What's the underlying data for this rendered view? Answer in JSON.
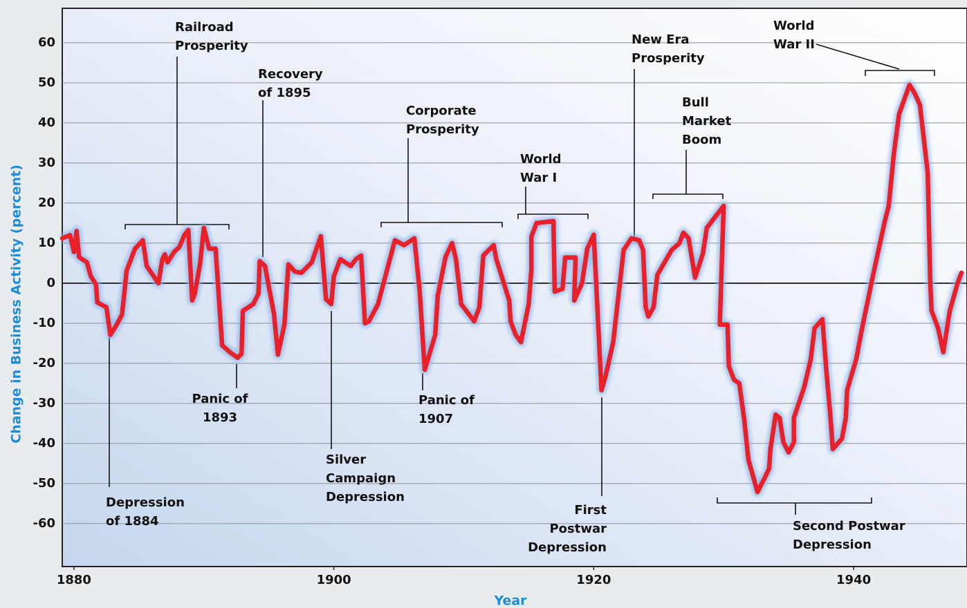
{
  "chart_data": {
    "type": "line",
    "xlabel": "Year",
    "ylabel": "Change in Business Activity  (percent)",
    "xlim": [
      1879.1,
      1948.3
    ],
    "ylim": [
      -70.7,
      68.6
    ],
    "xticks": [
      1880,
      1900,
      1920,
      1940
    ],
    "yticks": [
      -60,
      -50,
      -40,
      -30,
      -20,
      -10,
      0,
      10,
      20,
      30,
      40,
      50,
      60
    ],
    "grid": true,
    "series": [
      {
        "color": "#e8202a",
        "x": [
          1879.1,
          1879.7,
          1880,
          1880.2,
          1880.4,
          1881,
          1881.3,
          1881.7,
          1881.8,
          1882.5,
          1882.8,
          1883.3,
          1883.7,
          1883.9,
          1884.05,
          1884.7,
          1885.3,
          1885.6,
          1886.5,
          1886.8,
          1887,
          1887.2,
          1887.7,
          1888.1,
          1888.5,
          1888.8,
          1889.1,
          1889.3,
          1889.7,
          1890,
          1890.4,
          1890.9,
          1891.4,
          1892,
          1892.6,
          1892.9,
          1893,
          1893.8,
          1894.2,
          1894.3,
          1894.7,
          1895.4,
          1895.7,
          1896.2,
          1896.5,
          1897,
          1897.5,
          1898.3,
          1899,
          1899.4,
          1899.8,
          1900,
          1900.5,
          1901.3,
          1901.7,
          1902.1,
          1902.4,
          1902.7,
          1903.4,
          1904.7,
          1905.4,
          1906.2,
          1906.6,
          1907,
          1907.8,
          1908,
          1908.6,
          1909.1,
          1909.4,
          1909.8,
          1910.8,
          1911.2,
          1911.5,
          1912.3,
          1912.5,
          1913.5,
          1913.6,
          1914,
          1914.4,
          1915,
          1915.2,
          1915.2,
          1915.6,
          1916.9,
          1917,
          1917.6,
          1917.8,
          1918.6,
          1918.5,
          1919.1,
          1919.5,
          1920,
          1920.6,
          1920.9,
          1921.5,
          1922.3,
          1922.9,
          1923.5,
          1923.8,
          1924,
          1924.2,
          1924.6,
          1924.9,
          1926,
          1926.6,
          1926.9,
          1927.3,
          1927.8,
          1928.4,
          1928.7,
          1930,
          1929.7,
          1930.3,
          1930.4,
          1930.8,
          1931.2,
          1931.6,
          1931.9,
          1932.2,
          1932.6,
          1933.2,
          1933.5,
          1933.6,
          1934,
          1934.3,
          1934.6,
          1935,
          1935.4,
          1935.4,
          1936.2,
          1936.7,
          1937,
          1937.6,
          1937.9,
          1938.2,
          1938.4,
          1939.1,
          1939.4,
          1939.5,
          1940.2,
          1940.6,
          1941.5,
          1942.4,
          1942.7,
          1943.1,
          1943.5,
          1944.3,
          1944.7,
          1945.1,
          1945.7,
          1945.9,
          1946,
          1946.5,
          1946.9,
          1947.4,
          1948,
          1948.3
        ],
        "values": [
          11.2,
          12,
          7.8,
          13,
          6.5,
          5.2,
          1.7,
          -0.3,
          -4.8,
          -6,
          -12.9,
          -10.3,
          -7.8,
          -1.7,
          3.1,
          8.6,
          10.7,
          4.3,
          0,
          6,
          7.2,
          5.2,
          7.8,
          9,
          12,
          13.3,
          -4.3,
          -2.6,
          4.7,
          13.8,
          8.6,
          8.6,
          -15.5,
          -17.2,
          -18.6,
          -17.6,
          -6.9,
          -5.2,
          -2.6,
          5.5,
          4.3,
          -7.8,
          -17.8,
          -10.3,
          4.7,
          2.9,
          2.6,
          5.2,
          11.7,
          -4,
          -5.2,
          1.7,
          6,
          4.3,
          6,
          6.9,
          -10,
          -9.5,
          -5.2,
          10.7,
          9.5,
          11.2,
          -1.7,
          -21.6,
          -12.9,
          -3.1,
          6.6,
          10,
          6,
          -5.2,
          -9.5,
          -6,
          6.9,
          9.5,
          6,
          -4.3,
          -9.5,
          -12.9,
          -14.7,
          -5.2,
          3.4,
          11.6,
          15,
          15.5,
          -2.1,
          -1.4,
          6.4,
          6.4,
          -4.3,
          0,
          8.6,
          12.1,
          -26.7,
          -23.3,
          -14.7,
          8.3,
          11.2,
          10.7,
          8.3,
          -6,
          -8.3,
          -6,
          2.1,
          8.3,
          10,
          12.6,
          11.2,
          1.4,
          7.4,
          13.8,
          19.3,
          -10.3,
          -10.3,
          -20.7,
          -24.1,
          -25,
          -34.5,
          -44,
          -47.4,
          -52.1,
          -48.3,
          -46.2,
          -41.4,
          -32.8,
          -33.6,
          -39.7,
          -42.2,
          -39.7,
          -33.6,
          -25.9,
          -19,
          -11.2,
          -9,
          -21.6,
          -32.8,
          -41.4,
          -38.8,
          -33.6,
          -26.7,
          -19,
          -12.1,
          2.1,
          15.5,
          19.3,
          32.4,
          42.2,
          49.5,
          47.4,
          44.5,
          27.6,
          0,
          -6.9,
          -11.2,
          -17.2,
          -6.9,
          0,
          2.6
        ]
      }
    ],
    "annotations": [
      {
        "text": [
          "Railroad",
          "Prosperity"
        ]
      },
      {
        "text": [
          "Recovery",
          "of 1895"
        ]
      },
      {
        "text": [
          "Corporate",
          "Prosperity"
        ]
      },
      {
        "text": [
          "World",
          "War I"
        ]
      },
      {
        "text": [
          "New Era",
          "Prosperity"
        ]
      },
      {
        "text": [
          "Bull",
          "Market",
          "Boom"
        ]
      },
      {
        "text": [
          "World",
          "War II"
        ]
      },
      {
        "text": [
          "Depression",
          "of 1884"
        ]
      },
      {
        "text": [
          "Panic of",
          "1893"
        ]
      },
      {
        "text": [
          "Silver",
          "Campaign",
          "Depression"
        ]
      },
      {
        "text": [
          "Panic of",
          "1907"
        ]
      },
      {
        "text": [
          "First",
          "Postwar",
          "Depression"
        ]
      },
      {
        "text": [
          "Second Postwar",
          "Depression"
        ]
      }
    ]
  }
}
